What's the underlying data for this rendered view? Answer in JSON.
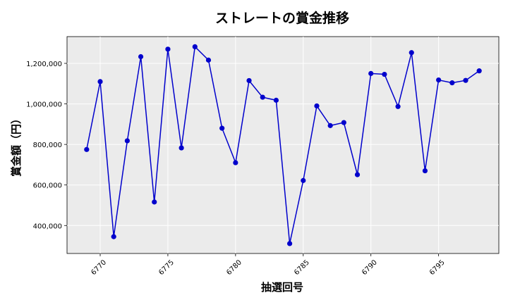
{
  "chart_data": {
    "type": "line",
    "title": "ストレートの賞金推移",
    "xlabel": "抽選回号",
    "ylabel": "賞金額（円）",
    "x": [
      6769,
      6770,
      6771,
      6772,
      6773,
      6774,
      6775,
      6776,
      6777,
      6778,
      6779,
      6780,
      6781,
      6782,
      6783,
      6784,
      6785,
      6786,
      6787,
      6788,
      6789,
      6790,
      6791,
      6792,
      6793,
      6794,
      6795,
      6796,
      6797,
      6798
    ],
    "series": [
      {
        "name": "",
        "values": [
          775000,
          1110000,
          345000,
          818000,
          1233000,
          516000,
          1270000,
          783000,
          1282000,
          1216000,
          880000,
          710000,
          1115000,
          1033000,
          1018000,
          311000,
          622000,
          990000,
          893000,
          908000,
          651000,
          1150000,
          1146000,
          987000,
          1253000,
          670000,
          1118000,
          1104000,
          1116000,
          1163000
        ],
        "color": "#0000cc"
      }
    ],
    "xticks": [
      6770,
      6775,
      6780,
      6785,
      6790,
      6795
    ],
    "xtick_labels": [
      "6770",
      "6775",
      "6780",
      "6785",
      "6790",
      "6795"
    ],
    "yticks": [
      400000,
      600000,
      800000,
      1000000,
      1200000
    ],
    "ytick_labels": [
      "400,000",
      "600,000",
      "800,000",
      "1,000,000",
      "1,200,000"
    ],
    "xlim": [
      6767.55,
      6799.45
    ],
    "ylim": [
      262000,
      1332000
    ],
    "grid": true,
    "plot_background": "#ebebeb"
  }
}
